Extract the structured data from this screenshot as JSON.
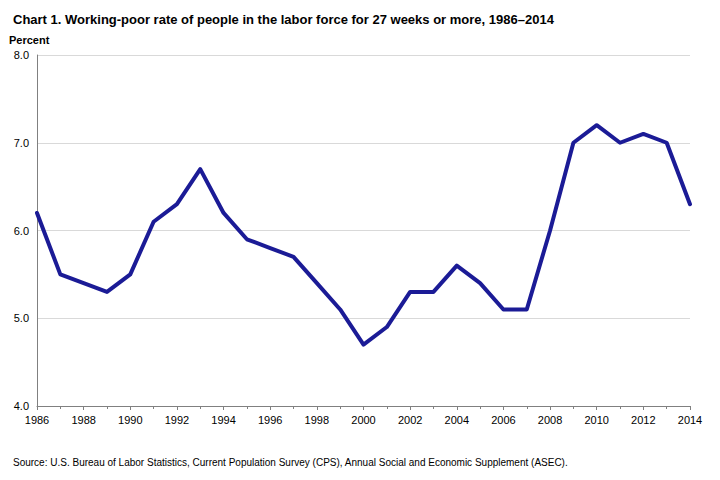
{
  "chart_data": {
    "type": "line",
    "title": "Chart 1. Working-poor rate of people in the labor force for 27 weeks or more, 1986–2014",
    "y_label": "Percent",
    "source": "Source: U.S. Bureau of Labor Statistics, Current Population Survey (CPS), Annual Social and Economic Supplement (ASEC).",
    "x": [
      1986,
      1987,
      1988,
      1989,
      1990,
      1991,
      1992,
      1993,
      1994,
      1995,
      1996,
      1997,
      1998,
      1999,
      2000,
      2001,
      2002,
      2003,
      2004,
      2005,
      2006,
      2007,
      2008,
      2009,
      2010,
      2011,
      2012,
      2013,
      2014
    ],
    "values": [
      6.2,
      5.5,
      5.4,
      5.3,
      5.5,
      6.1,
      6.3,
      6.7,
      6.2,
      5.9,
      5.8,
      5.7,
      5.4,
      5.1,
      4.7,
      4.9,
      5.3,
      5.3,
      5.6,
      5.4,
      5.1,
      5.1,
      6.0,
      7.0,
      7.2,
      7.0,
      7.1,
      7.0,
      6.3
    ],
    "color": "#1b1b96",
    "xlim": [
      1986,
      2014
    ],
    "xticks": [
      1986,
      1988,
      1990,
      1992,
      1994,
      1996,
      1998,
      2000,
      2002,
      2004,
      2006,
      2008,
      2010,
      2012,
      2014
    ],
    "ylim": [
      4,
      8
    ],
    "yticks": [
      {
        "value": 4,
        "label": "4.0"
      },
      {
        "value": 5,
        "label": "5.0"
      },
      {
        "value": 6,
        "label": "6.0"
      },
      {
        "value": 7,
        "label": "7.0"
      },
      {
        "value": 8,
        "label": "8.0"
      }
    ],
    "grid": true
  }
}
